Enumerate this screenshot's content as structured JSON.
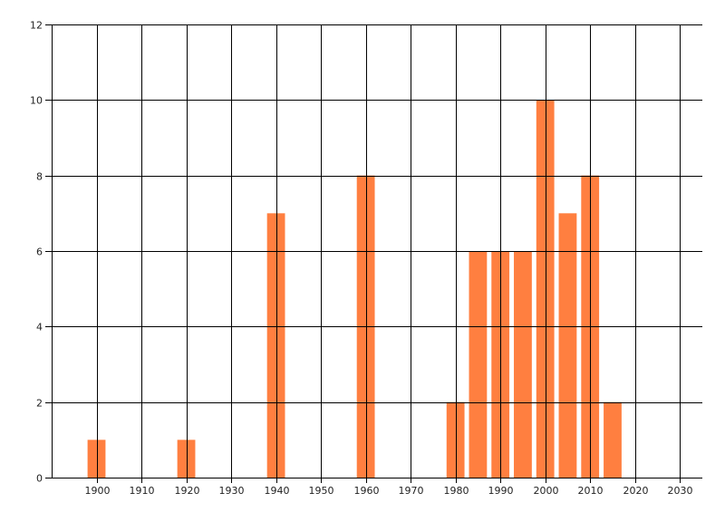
{
  "chart_data": {
    "type": "bar",
    "title": "",
    "xlabel": "",
    "ylabel": "",
    "xlim": [
      1890,
      2035
    ],
    "ylim": [
      0,
      12
    ],
    "grid": true,
    "bar_width_years": 4,
    "x_ticks": [
      1900,
      1910,
      1920,
      1930,
      1940,
      1950,
      1960,
      1970,
      1980,
      1990,
      2000,
      2010,
      2020,
      2030
    ],
    "y_ticks": [
      0,
      2,
      4,
      6,
      8,
      10,
      12
    ],
    "x": [
      1900,
      1920,
      1940,
      1960,
      1980,
      1985,
      1990,
      1995,
      2000,
      2005,
      2010,
      2015
    ],
    "values": [
      1,
      1,
      7,
      8,
      2,
      6,
      6,
      6,
      10,
      7,
      8,
      2
    ],
    "colors": {
      "bar": "#FF7F40",
      "grid": "#000000"
    }
  }
}
